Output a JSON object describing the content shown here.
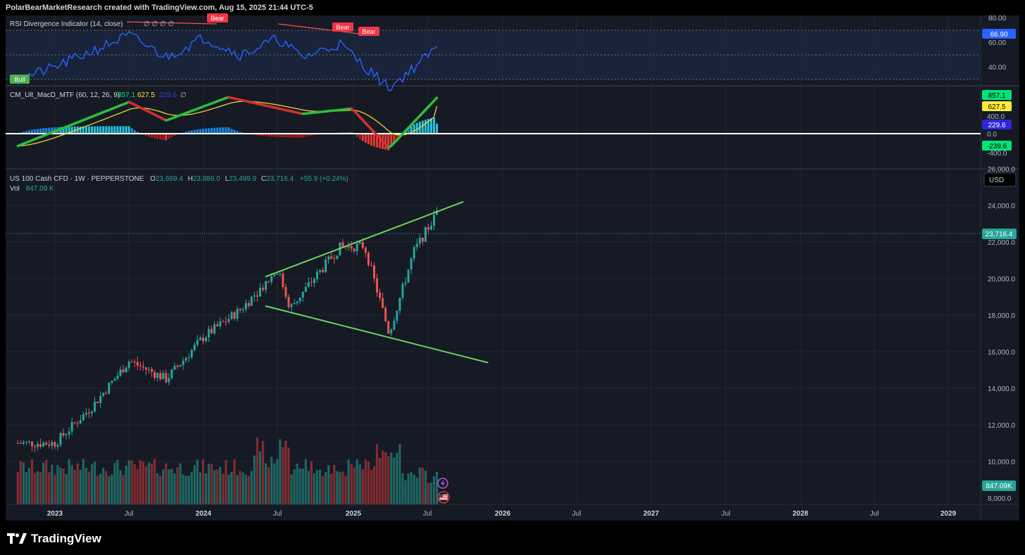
{
  "header": {
    "credit": "PolarBearMarketResearch created with TradingView.com, Aug 15, 2025 21:44 UTC-5"
  },
  "footer": {
    "brand": "TradingView"
  },
  "colors": {
    "bg": "#161a25",
    "up": "#26a69a",
    "down": "#ef5350",
    "rsi": "#2962ff",
    "macd": "#00c853",
    "signal": "#ffeb3b",
    "trend": "#6fd25c"
  },
  "rsi_panel": {
    "title": "RSI Divergence Indicator (14, close)",
    "extra": "∅ ∅ ∅ ∅",
    "ticks": [
      "80.00",
      "60.00",
      "40.00"
    ],
    "current": "66.90",
    "labels": {
      "bull": "Bull",
      "bear": "Bear"
    }
  },
  "macd_panel": {
    "title": "CM_Ult_MacD_MTF (60, 12, 26, 9)",
    "v1": "857.1",
    "v2": "627.5",
    "v3": "229.6",
    "v4": "∅",
    "ticks": [
      "400.0",
      "0.0",
      "-400.0"
    ],
    "tags": [
      "857.1",
      "627.5",
      "229.6",
      "-239.6"
    ]
  },
  "price_panel": {
    "symbol": "US 100 Cash CFD · 1W · PEPPERSTONE",
    "o_label": "O",
    "o": "23,669.4",
    "h_label": "H",
    "h": "23,986.0",
    "l_label": "L",
    "l": "23,499.9",
    "c_label": "C",
    "c": "23,716.4",
    "change": "+55.9 (+0.24%)",
    "vol_label": "Vol",
    "vol": "847.09 K",
    "currency": "USD",
    "ticks": [
      "26,000.0",
      "24,000.0",
      "22,000.0",
      "20,000.0",
      "18,000.0",
      "16,000.0",
      "14,000.0",
      "12,000.0",
      "10,000.0",
      "8,000.0"
    ],
    "last_price": "23,716.4",
    "last_vol": "847.09K"
  },
  "x_axis": {
    "ticks": [
      "2023",
      "Jul",
      "2024",
      "Jul",
      "2025",
      "Jul",
      "2026",
      "Jul",
      "2027",
      "Jul",
      "2028",
      "Jul",
      "2029"
    ]
  },
  "chart_data": {
    "type": "candlestick",
    "symbol": "US 100 Cash CFD",
    "interval": "1W",
    "ylim": [
      8000,
      26500
    ],
    "price_anchors": [
      {
        "x": "2022-10",
        "y": 11000
      },
      {
        "x": "2023-01",
        "y": 11000
      },
      {
        "x": "2023-04",
        "y": 13000
      },
      {
        "x": "2023-07",
        "y": 15500
      },
      {
        "x": "2023-10",
        "y": 14500
      },
      {
        "x": "2024-01",
        "y": 16800
      },
      {
        "x": "2024-04",
        "y": 18300
      },
      {
        "x": "2024-07",
        "y": 20500
      },
      {
        "x": "2024-08",
        "y": 18400
      },
      {
        "x": "2024-12",
        "y": 21700
      },
      {
        "x": "2025-02",
        "y": 21800
      },
      {
        "x": "2025-04",
        "y": 17000
      },
      {
        "x": "2025-06",
        "y": 21500
      },
      {
        "x": "2025-08",
        "y": 23716.4
      }
    ],
    "trendlines": [
      {
        "name": "upper",
        "from": {
          "x": "2024-06",
          "y": 20100
        },
        "to": {
          "x": "2025-10",
          "y": 24200
        }
      },
      {
        "name": "lower",
        "from": {
          "x": "2024-06",
          "y": 18500
        },
        "to": {
          "x": "2025-12",
          "y": 15400
        }
      }
    ],
    "rsi": {
      "ylim": [
        30,
        80
      ],
      "anchors": [
        {
          "x": "2022-10",
          "y": 40
        },
        {
          "x": "2023-01",
          "y": 50
        },
        {
          "x": "2023-07",
          "y": 76
        },
        {
          "x": "2023-10",
          "y": 58
        },
        {
          "x": "2024-01",
          "y": 74
        },
        {
          "x": "2024-04",
          "y": 60
        },
        {
          "x": "2024-07",
          "y": 73
        },
        {
          "x": "2024-09",
          "y": 58
        },
        {
          "x": "2024-12",
          "y": 69
        },
        {
          "x": "2025-04",
          "y": 33
        },
        {
          "x": "2025-08",
          "y": 66.9
        }
      ],
      "bear_labels": 3,
      "bull_labels": 1
    },
    "macd": {
      "ylim": [
        -500,
        950
      ],
      "macd_anchors": [
        {
          "x": "2022-10",
          "y": -280
        },
        {
          "x": "2023-07",
          "y": 720
        },
        {
          "x": "2023-10",
          "y": 300
        },
        {
          "x": "2024-03",
          "y": 830
        },
        {
          "x": "2024-09",
          "y": 450
        },
        {
          "x": "2025-01",
          "y": 570
        },
        {
          "x": "2025-04",
          "y": -330
        },
        {
          "x": "2025-08",
          "y": 857.1
        }
      ],
      "signal": 627.5,
      "histogram_last": 229.6
    }
  }
}
